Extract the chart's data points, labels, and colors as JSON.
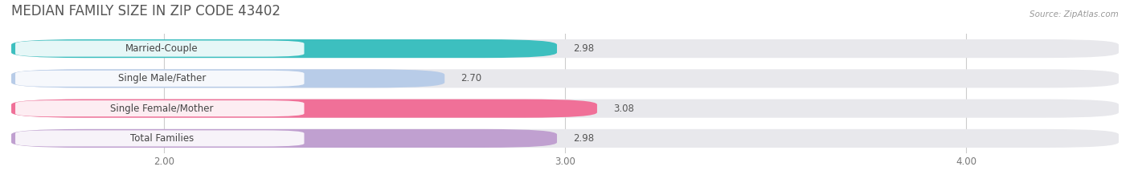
{
  "title": "MEDIAN FAMILY SIZE IN ZIP CODE 43402",
  "source": "Source: ZipAtlas.com",
  "categories": [
    "Married-Couple",
    "Single Male/Father",
    "Single Female/Mother",
    "Total Families"
  ],
  "values": [
    2.98,
    2.7,
    3.08,
    2.98
  ],
  "bar_colors": [
    "#3dbfbf",
    "#b8cce8",
    "#f07098",
    "#c0a0d0"
  ],
  "xlim_left": 1.62,
  "xlim_right": 4.38,
  "xticks": [
    2.0,
    3.0,
    4.0
  ],
  "xtick_labels": [
    "2.00",
    "3.00",
    "4.00"
  ],
  "background_color": "#ffffff",
  "bar_bg_color": "#e8e8ec",
  "label_fontsize": 8.5,
  "value_fontsize": 8.5,
  "title_fontsize": 12,
  "bar_height": 0.62,
  "bar_gap": 0.18
}
